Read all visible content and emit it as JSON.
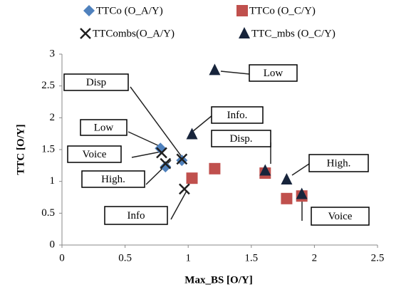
{
  "chart_data": {
    "type": "scatter",
    "xlabel": "Max_BS  [O/Y]",
    "ylabel": "TTC  [O/Y]",
    "xlim": [
      0,
      2.5
    ],
    "xticks": [
      0,
      0.5,
      1,
      1.5,
      2,
      2.5
    ],
    "ylim": [
      0,
      3
    ],
    "yticks": [
      0,
      0.5,
      1,
      1.5,
      2,
      2.5,
      3
    ],
    "grid": false,
    "series": [
      {
        "name": "TTCo (O_A/Y)",
        "color": "#4f81bd",
        "marker": "diamond",
        "x": [
          0.78,
          0.82,
          0.95
        ],
        "values": [
          1.52,
          1.23,
          1.33
        ]
      },
      {
        "name": "TTCo (O_C/Y)",
        "color": "#c0504d",
        "marker": "square",
        "x": [
          1.03,
          1.21,
          1.61,
          1.78,
          1.9
        ],
        "values": [
          1.05,
          1.2,
          1.13,
          0.73,
          0.77
        ]
      },
      {
        "name": "TTCombs(O_A/Y)",
        "color": "#1f1f1f",
        "marker": "x",
        "x": [
          0.79,
          0.82,
          0.95,
          0.97
        ],
        "values": [
          1.45,
          1.28,
          1.35,
          0.88
        ]
      },
      {
        "name": "TTC_mbs (O_C/Y)",
        "color": "#17243b",
        "marker": "triangle",
        "x": [
          1.21,
          1.03,
          1.61,
          1.78,
          1.9
        ],
        "values": [
          2.75,
          1.74,
          1.17,
          1.03,
          0.8
        ]
      }
    ],
    "annotations": [
      "Disp",
      "Low",
      "Voice",
      "High.",
      "Info",
      "Low",
      "Info.",
      "Disp.",
      "High.",
      "Voice"
    ]
  }
}
